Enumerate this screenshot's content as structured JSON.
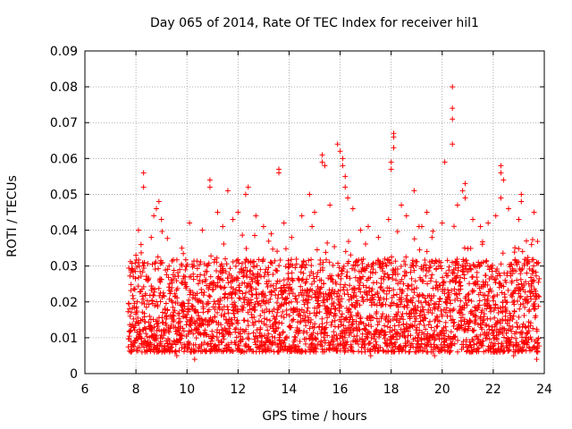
{
  "chart_data": {
    "type": "scatter",
    "title": "Day 065 of 2014, Rate Of TEC Index for receiver hil1",
    "xlabel": "GPS time / hours",
    "ylabel": "ROTI / TECUs",
    "xlim": [
      6,
      24
    ],
    "ylim": [
      0,
      0.09
    ],
    "xticks": [
      6,
      8,
      10,
      12,
      14,
      16,
      18,
      20,
      22,
      24
    ],
    "yticks": [
      0,
      0.01,
      0.02,
      0.03,
      0.04,
      0.05,
      0.06,
      0.07,
      0.08,
      0.09
    ],
    "xtick_labels": [
      "6",
      "8",
      "10",
      "12",
      "14",
      "16",
      "18",
      "20",
      "22",
      "24"
    ],
    "ytick_labels": [
      "0",
      "0.01",
      "0.02",
      "0.03",
      "0.04",
      "0.05",
      "0.06",
      "0.07",
      "0.08",
      "0.09"
    ],
    "grid": true,
    "marker": "+",
    "marker_color": "#ff0000",
    "x_range_of_data": [
      7.7,
      23.8
    ],
    "series": [
      {
        "name": "hil1",
        "points": [
          [
            8.3,
            0.056
          ],
          [
            8.3,
            0.052
          ],
          [
            8.9,
            0.048
          ],
          [
            8.8,
            0.046
          ],
          [
            9.0,
            0.043
          ],
          [
            8.7,
            0.044
          ],
          [
            10.9,
            0.054
          ],
          [
            10.9,
            0.052
          ],
          [
            11.6,
            0.051
          ],
          [
            12.4,
            0.052
          ],
          [
            12.3,
            0.05
          ],
          [
            13.6,
            0.057
          ],
          [
            13.6,
            0.056
          ],
          [
            14.8,
            0.05
          ],
          [
            15.3,
            0.061
          ],
          [
            15.3,
            0.059
          ],
          [
            15.4,
            0.058
          ],
          [
            15.9,
            0.064
          ],
          [
            16.0,
            0.062
          ],
          [
            16.1,
            0.06
          ],
          [
            16.1,
            0.058
          ],
          [
            16.2,
            0.055
          ],
          [
            16.2,
            0.052
          ],
          [
            16.3,
            0.049
          ],
          [
            18.1,
            0.067
          ],
          [
            18.1,
            0.066
          ],
          [
            18.1,
            0.063
          ],
          [
            18.0,
            0.059
          ],
          [
            18.0,
            0.057
          ],
          [
            18.9,
            0.051
          ],
          [
            20.1,
            0.059
          ],
          [
            20.4,
            0.08
          ],
          [
            20.4,
            0.074
          ],
          [
            20.4,
            0.071
          ],
          [
            20.4,
            0.064
          ],
          [
            20.9,
            0.053
          ],
          [
            20.8,
            0.051
          ],
          [
            20.9,
            0.049
          ],
          [
            22.3,
            0.058
          ],
          [
            22.3,
            0.056
          ],
          [
            22.4,
            0.054
          ],
          [
            23.1,
            0.05
          ],
          [
            23.1,
            0.048
          ],
          [
            23.6,
            0.045
          ],
          [
            22.3,
            0.049
          ],
          [
            7.9,
            0.027
          ],
          [
            8.0,
            0.033
          ],
          [
            8.1,
            0.04
          ],
          [
            8.2,
            0.036
          ],
          [
            7.8,
            0.009
          ],
          [
            7.8,
            0.006
          ],
          [
            8.6,
            0.038
          ],
          [
            9.3,
            0.03
          ],
          [
            9.6,
            0.005
          ],
          [
            9.8,
            0.035
          ],
          [
            10.1,
            0.042
          ],
          [
            10.3,
            0.004
          ],
          [
            10.6,
            0.04
          ],
          [
            11.2,
            0.045
          ],
          [
            11.4,
            0.041
          ],
          [
            11.8,
            0.043
          ],
          [
            12.0,
            0.045
          ],
          [
            12.7,
            0.044
          ],
          [
            13.0,
            0.041
          ],
          [
            13.3,
            0.039
          ],
          [
            13.8,
            0.042
          ],
          [
            13.6,
            0.006
          ],
          [
            14.1,
            0.038
          ],
          [
            14.5,
            0.044
          ],
          [
            14.9,
            0.041
          ],
          [
            15.0,
            0.045
          ],
          [
            15.6,
            0.047
          ],
          [
            16.5,
            0.046
          ],
          [
            16.8,
            0.04
          ],
          [
            17.1,
            0.041
          ],
          [
            17.5,
            0.038
          ],
          [
            17.2,
            0.005
          ],
          [
            17.9,
            0.043
          ],
          [
            18.4,
            0.047
          ],
          [
            18.6,
            0.044
          ],
          [
            19.2,
            0.041
          ],
          [
            19.4,
            0.045
          ],
          [
            19.6,
            0.038
          ],
          [
            19.7,
            0.005
          ],
          [
            20.0,
            0.042
          ],
          [
            20.6,
            0.047
          ],
          [
            21.2,
            0.043
          ],
          [
            21.5,
            0.041
          ],
          [
            21.8,
            0.042
          ],
          [
            22.1,
            0.044
          ],
          [
            22.6,
            0.046
          ],
          [
            22.8,
            0.005
          ],
          [
            23.0,
            0.043
          ],
          [
            23.3,
            0.037
          ],
          [
            23.5,
            0.036
          ],
          [
            23.7,
            0.031
          ],
          [
            23.7,
            0.004
          ]
        ]
      }
    ]
  }
}
